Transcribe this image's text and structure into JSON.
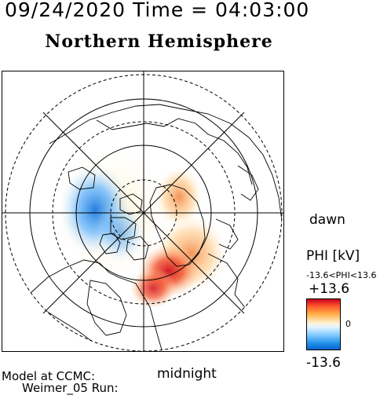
{
  "header": {
    "timestamp": "09/24/2020 Time = 04:03:00"
  },
  "map": {
    "title": "Northern Hemisphere",
    "projection": "polar stereographic, geomagnetic pole centered",
    "side_labels": {
      "right": "dawn",
      "bottom": "midnight"
    }
  },
  "colorbar": {
    "quantity": "PHI [kV]",
    "range_text": "-13.6<PHI<13.6",
    "max_label": "+13.6",
    "zero_label": "0",
    "min_label": "-13.6",
    "colors": {
      "max": "#c8001e",
      "mid": "#ffffff",
      "min": "#0a64d0"
    }
  },
  "footer": {
    "line1": "Model at CCMC:",
    "line2": "Weimer_05 Run:"
  }
}
